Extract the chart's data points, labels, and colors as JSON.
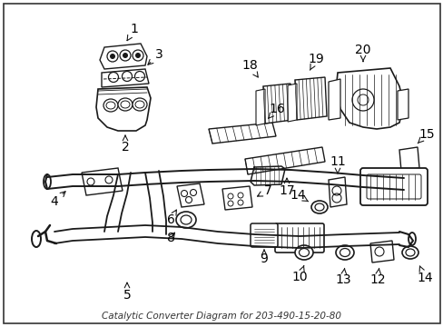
{
  "title": "Catalytic Converter Diagram for 203-490-15-20-80",
  "background_color": "#ffffff",
  "fig_width": 4.89,
  "fig_height": 3.6,
  "dpi": 100,
  "label_fontsize": 10,
  "label_color": "#000000",
  "line_color": "#1a1a1a",
  "footnote": "Catalytic Converter Diagram for 203-490-15-20-80"
}
